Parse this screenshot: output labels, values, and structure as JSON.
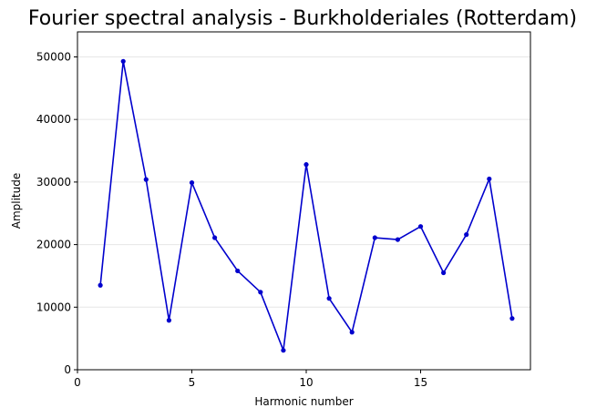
{
  "chart_data": {
    "type": "line",
    "title": "Fourier spectral analysis - Burkholderiales (Rotterdam)",
    "xlabel": "Harmonic number",
    "ylabel": "Amplitude",
    "xlim": [
      0,
      19.8
    ],
    "ylim": [
      0,
      54000
    ],
    "xticks": [
      0,
      5,
      10,
      15
    ],
    "yticks": [
      0,
      10000,
      20000,
      30000,
      40000,
      50000
    ],
    "grid": "horizontal",
    "colors": {
      "line": "#0000cd"
    },
    "series": [
      {
        "x": [
          1,
          2,
          3,
          4,
          5,
          6,
          7,
          8,
          9,
          10,
          11,
          12,
          13,
          14,
          15,
          16,
          17,
          18,
          19
        ],
        "values": [
          13500,
          49300,
          30400,
          7900,
          29900,
          21100,
          15800,
          12400,
          3100,
          32800,
          11400,
          6000,
          21100,
          20800,
          22900,
          15500,
          21600,
          30500,
          8200
        ]
      }
    ]
  }
}
